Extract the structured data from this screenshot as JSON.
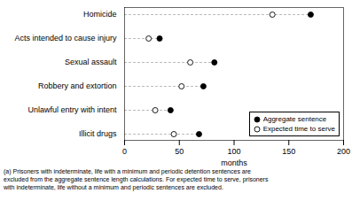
{
  "chart_data": {
    "type": "dot",
    "orientation": "horizontal",
    "categories": [
      "Illicit drugs",
      "Unlawful entry with intent",
      "Robbery and extortion",
      "Sexual assault",
      "Acts intended to cause injury",
      "Homicide"
    ],
    "series": [
      {
        "name": "Aggregate sentence",
        "color": "#000000",
        "marker": "circle",
        "values": [
          68,
          42,
          72,
          82,
          32,
          170
        ]
      },
      {
        "name": "Expected time to serve",
        "color": "#000000",
        "marker": "circle_open",
        "values": [
          45,
          28,
          52,
          60,
          22,
          135
        ]
      }
    ],
    "x_label": "months",
    "xlim": [
      0,
      200
    ],
    "xticks": [
      0,
      50,
      100,
      150,
      200
    ],
    "legend": "lower right",
    "grid": false,
    "annotations": [
      "(a) Prisoners with indeterminate, life with a minimum and periodic detention sentences are\nexcluded from the aggregate sentence length calculations. For expected time to serve, prisoners\nwith indeterminate, life without a minimum and periodic sentences are excluded."
    ]
  }
}
